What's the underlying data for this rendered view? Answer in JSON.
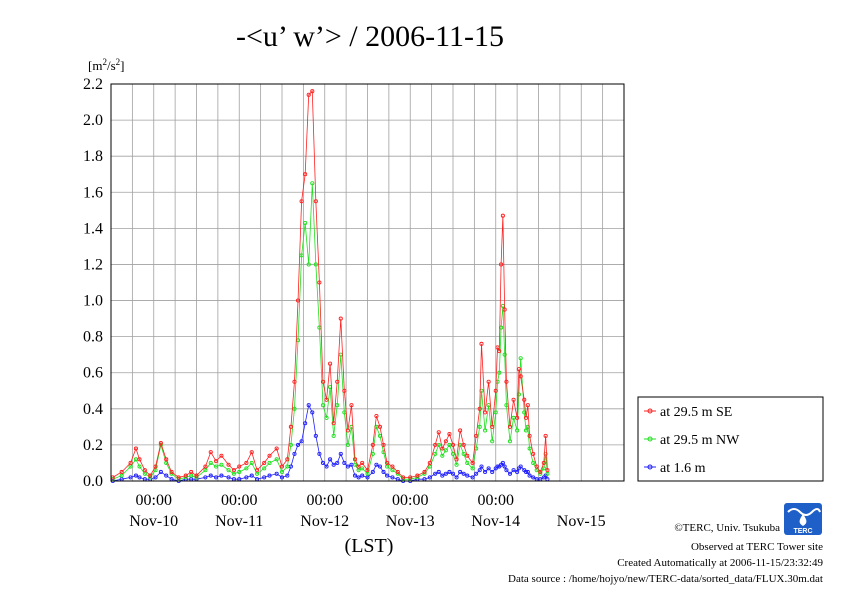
{
  "colors": {
    "se": "#ff2020",
    "nw": "#20e020",
    "low": "#2020ff",
    "grid": "#a0a0a0",
    "logo": "#1f5fc8"
  },
  "credits": {
    "copyright": "©TERC, Univ. Tsukuba",
    "observed": "Observed at TERC Tower site",
    "created": "Created Automatically at 2006-11-15/23:32:49",
    "source": "Data source : /home/hojyo/new/TERC-data/sorted_data/FLUX.30m.dat",
    "logo_text": "TERC"
  },
  "chart_data": {
    "type": "line",
    "title": "-<u’ w’> / 2006-11-15",
    "ylabel": "[m2/s2]",
    "xlabel": "(LST)",
    "ylim": [
      0,
      2.2
    ],
    "ytick_labels": [
      "0.0",
      "0.2",
      "0.4",
      "0.6",
      "0.8",
      "1.0",
      "1.2",
      "1.4",
      "1.6",
      "1.8",
      "2.0",
      "2.2"
    ],
    "xlim_hours": [
      -12,
      132
    ],
    "xtick_time_labels": [
      "00:00",
      "00:00",
      "00:00",
      "00:00",
      "00:00"
    ],
    "xtick_date_labels": [
      "Nov-10",
      "Nov-11",
      "Nov-12",
      "Nov-13",
      "Nov-14",
      "Nov-15"
    ],
    "grid": true,
    "legend_position": "right",
    "series": [
      {
        "name": "at 29.5 m SE",
        "points": [
          [
            -11.5,
            0.02
          ],
          [
            -9,
            0.05
          ],
          [
            -6.5,
            0.1
          ],
          [
            -5,
            0.18
          ],
          [
            -4,
            0.12
          ],
          [
            -2.5,
            0.06
          ],
          [
            -1,
            0.03
          ],
          [
            0.5,
            0.08
          ],
          [
            2,
            0.21
          ],
          [
            3.5,
            0.12
          ],
          [
            5,
            0.05
          ],
          [
            7,
            0.02
          ],
          [
            9,
            0.03
          ],
          [
            10.5,
            0.05
          ],
          [
            12,
            0.03
          ],
          [
            14.5,
            0.08
          ],
          [
            16,
            0.16
          ],
          [
            17.5,
            0.11
          ],
          [
            19,
            0.14
          ],
          [
            21,
            0.09
          ],
          [
            22.5,
            0.06
          ],
          [
            24,
            0.08
          ],
          [
            26,
            0.1
          ],
          [
            27.5,
            0.16
          ],
          [
            29,
            0.06
          ],
          [
            31,
            0.1
          ],
          [
            32.5,
            0.14
          ],
          [
            34.5,
            0.18
          ],
          [
            36,
            0.08
          ],
          [
            37.5,
            0.12
          ],
          [
            38.5,
            0.3
          ],
          [
            39.5,
            0.55
          ],
          [
            40.5,
            1.0
          ],
          [
            41.5,
            1.55
          ],
          [
            42.5,
            1.7
          ],
          [
            43.5,
            2.14
          ],
          [
            44.5,
            2.16
          ],
          [
            45.5,
            1.55
          ],
          [
            46.5,
            1.1
          ],
          [
            47.5,
            0.55
          ],
          [
            48.5,
            0.45
          ],
          [
            49.5,
            0.65
          ],
          [
            50.5,
            0.32
          ],
          [
            51.5,
            0.55
          ],
          [
            52.5,
            0.9
          ],
          [
            53.5,
            0.5
          ],
          [
            54.5,
            0.28
          ],
          [
            55.5,
            0.42
          ],
          [
            56.5,
            0.12
          ],
          [
            57.5,
            0.08
          ],
          [
            58.5,
            0.1
          ],
          [
            60,
            0.06
          ],
          [
            61.5,
            0.2
          ],
          [
            62.5,
            0.36
          ],
          [
            63.5,
            0.3
          ],
          [
            64.5,
            0.2
          ],
          [
            65.5,
            0.1
          ],
          [
            67,
            0.08
          ],
          [
            68.5,
            0.05
          ],
          [
            70,
            0.02
          ],
          [
            72,
            0.02
          ],
          [
            74,
            0.03
          ],
          [
            76,
            0.05
          ],
          [
            77.5,
            0.1
          ],
          [
            79,
            0.2
          ],
          [
            80,
            0.27
          ],
          [
            81,
            0.18
          ],
          [
            82,
            0.22
          ],
          [
            83,
            0.26
          ],
          [
            84,
            0.2
          ],
          [
            85,
            0.12
          ],
          [
            86,
            0.28
          ],
          [
            87,
            0.2
          ],
          [
            88,
            0.14
          ],
          [
            89.5,
            0.1
          ],
          [
            90.5,
            0.25
          ],
          [
            91.5,
            0.4
          ],
          [
            92,
            0.76
          ],
          [
            93,
            0.38
          ],
          [
            94,
            0.55
          ],
          [
            95,
            0.3
          ],
          [
            96,
            0.5
          ],
          [
            96.5,
            0.74
          ],
          [
            97,
            0.72
          ],
          [
            97.5,
            1.2
          ],
          [
            98,
            1.47
          ],
          [
            98.5,
            0.95
          ],
          [
            99,
            0.55
          ],
          [
            100,
            0.3
          ],
          [
            101,
            0.45
          ],
          [
            102,
            0.35
          ],
          [
            102.5,
            0.62
          ],
          [
            103,
            0.58
          ],
          [
            104,
            0.45
          ],
          [
            104.5,
            0.35
          ],
          [
            105,
            0.42
          ],
          [
            105.5,
            0.25
          ],
          [
            106.5,
            0.15
          ],
          [
            107.5,
            0.08
          ],
          [
            108.5,
            0.05
          ],
          [
            109.5,
            0.1
          ],
          [
            110,
            0.25
          ],
          [
            110.5,
            0.06
          ]
        ]
      },
      {
        "name": "at 29.5 m NW",
        "points": [
          [
            -11.5,
            0.01
          ],
          [
            -9,
            0.03
          ],
          [
            -6.5,
            0.08
          ],
          [
            -5,
            0.12
          ],
          [
            -4,
            0.08
          ],
          [
            -2.5,
            0.04
          ],
          [
            -1,
            0.02
          ],
          [
            0.5,
            0.06
          ],
          [
            2,
            0.2
          ],
          [
            3.5,
            0.1
          ],
          [
            5,
            0.04
          ],
          [
            7,
            0.01
          ],
          [
            9,
            0.02
          ],
          [
            10.5,
            0.03
          ],
          [
            12,
            0.02
          ],
          [
            14.5,
            0.06
          ],
          [
            16,
            0.1
          ],
          [
            17.5,
            0.08
          ],
          [
            19,
            0.09
          ],
          [
            21,
            0.06
          ],
          [
            22.5,
            0.04
          ],
          [
            24,
            0.05
          ],
          [
            26,
            0.07
          ],
          [
            27.5,
            0.1
          ],
          [
            29,
            0.04
          ],
          [
            31,
            0.07
          ],
          [
            32.5,
            0.1
          ],
          [
            34.5,
            0.12
          ],
          [
            36,
            0.05
          ],
          [
            37.5,
            0.08
          ],
          [
            38.5,
            0.2
          ],
          [
            39.5,
            0.4
          ],
          [
            40.5,
            0.78
          ],
          [
            41.5,
            1.25
          ],
          [
            42.5,
            1.43
          ],
          [
            43.5,
            1.2
          ],
          [
            44.5,
            1.65
          ],
          [
            45.5,
            1.2
          ],
          [
            46.5,
            0.85
          ],
          [
            47.5,
            0.42
          ],
          [
            48.5,
            0.35
          ],
          [
            49.5,
            0.52
          ],
          [
            50.5,
            0.25
          ],
          [
            51.5,
            0.42
          ],
          [
            52.5,
            0.7
          ],
          [
            53.5,
            0.38
          ],
          [
            54.5,
            0.2
          ],
          [
            55.5,
            0.3
          ],
          [
            56.5,
            0.09
          ],
          [
            57.5,
            0.06
          ],
          [
            58.5,
            0.07
          ],
          [
            60,
            0.04
          ],
          [
            61.5,
            0.15
          ],
          [
            62.5,
            0.3
          ],
          [
            63.5,
            0.25
          ],
          [
            64.5,
            0.16
          ],
          [
            65.5,
            0.08
          ],
          [
            67,
            0.06
          ],
          [
            68.5,
            0.04
          ],
          [
            70,
            0.01
          ],
          [
            72,
            0.01
          ],
          [
            74,
            0.02
          ],
          [
            76,
            0.04
          ],
          [
            77.5,
            0.08
          ],
          [
            79,
            0.15
          ],
          [
            80,
            0.2
          ],
          [
            81,
            0.14
          ],
          [
            82,
            0.17
          ],
          [
            83,
            0.2
          ],
          [
            84,
            0.15
          ],
          [
            85,
            0.09
          ],
          [
            86,
            0.2
          ],
          [
            87,
            0.15
          ],
          [
            88,
            0.1
          ],
          [
            89.5,
            0.07
          ],
          [
            90.5,
            0.18
          ],
          [
            91.5,
            0.3
          ],
          [
            92,
            0.5
          ],
          [
            93,
            0.28
          ],
          [
            94,
            0.42
          ],
          [
            95,
            0.22
          ],
          [
            96,
            0.38
          ],
          [
            96.5,
            0.55
          ],
          [
            97,
            0.6
          ],
          [
            97.5,
            0.85
          ],
          [
            98,
            0.97
          ],
          [
            98.5,
            0.7
          ],
          [
            99,
            0.42
          ],
          [
            100,
            0.22
          ],
          [
            101,
            0.35
          ],
          [
            102,
            0.28
          ],
          [
            102.5,
            0.48
          ],
          [
            103,
            0.68
          ],
          [
            104,
            0.38
          ],
          [
            104.5,
            0.28
          ],
          [
            105,
            0.3
          ],
          [
            105.5,
            0.18
          ],
          [
            106.5,
            0.1
          ],
          [
            107.5,
            0.06
          ],
          [
            108.5,
            0.04
          ],
          [
            109.5,
            0.07
          ],
          [
            110,
            0.15
          ],
          [
            110.5,
            0.04
          ]
        ]
      },
      {
        "name": "at 1.6 m",
        "points": [
          [
            -11.5,
            0.0
          ],
          [
            -9,
            0.01
          ],
          [
            -6.5,
            0.02
          ],
          [
            -5,
            0.03
          ],
          [
            -4,
            0.02
          ],
          [
            -2.5,
            0.01
          ],
          [
            -1,
            0.01
          ],
          [
            0.5,
            0.02
          ],
          [
            2,
            0.05
          ],
          [
            3.5,
            0.03
          ],
          [
            5,
            0.01
          ],
          [
            7,
            0.0
          ],
          [
            9,
            0.01
          ],
          [
            10.5,
            0.01
          ],
          [
            12,
            0.01
          ],
          [
            14.5,
            0.02
          ],
          [
            16,
            0.03
          ],
          [
            17.5,
            0.02
          ],
          [
            19,
            0.03
          ],
          [
            21,
            0.02
          ],
          [
            22.5,
            0.01
          ],
          [
            24,
            0.01
          ],
          [
            26,
            0.02
          ],
          [
            27.5,
            0.03
          ],
          [
            29,
            0.01
          ],
          [
            31,
            0.02
          ],
          [
            32.5,
            0.03
          ],
          [
            34.5,
            0.04
          ],
          [
            36,
            0.02
          ],
          [
            37.5,
            0.03
          ],
          [
            38.5,
            0.08
          ],
          [
            39.5,
            0.15
          ],
          [
            40.5,
            0.2
          ],
          [
            41.5,
            0.22
          ],
          [
            42.5,
            0.32
          ],
          [
            43.5,
            0.42
          ],
          [
            44.5,
            0.38
          ],
          [
            45.5,
            0.25
          ],
          [
            46.5,
            0.15
          ],
          [
            47.5,
            0.1
          ],
          [
            48.5,
            0.08
          ],
          [
            49.5,
            0.12
          ],
          [
            50.5,
            0.09
          ],
          [
            51.5,
            0.1
          ],
          [
            52.5,
            0.15
          ],
          [
            53.5,
            0.1
          ],
          [
            54.5,
            0.08
          ],
          [
            55.5,
            0.09
          ],
          [
            56.5,
            0.03
          ],
          [
            57.5,
            0.02
          ],
          [
            58.5,
            0.03
          ],
          [
            60,
            0.02
          ],
          [
            61.5,
            0.05
          ],
          [
            62.5,
            0.09
          ],
          [
            63.5,
            0.08
          ],
          [
            64.5,
            0.05
          ],
          [
            65.5,
            0.03
          ],
          [
            67,
            0.02
          ],
          [
            68.5,
            0.01
          ],
          [
            70,
            0.0
          ],
          [
            72,
            0.0
          ],
          [
            74,
            0.01
          ],
          [
            76,
            0.01
          ],
          [
            77.5,
            0.02
          ],
          [
            79,
            0.04
          ],
          [
            80,
            0.05
          ],
          [
            81,
            0.03
          ],
          [
            82,
            0.04
          ],
          [
            83,
            0.05
          ],
          [
            84,
            0.04
          ],
          [
            85,
            0.02
          ],
          [
            86,
            0.05
          ],
          [
            87,
            0.04
          ],
          [
            88,
            0.03
          ],
          [
            89.5,
            0.02
          ],
          [
            90.5,
            0.04
          ],
          [
            91.5,
            0.06
          ],
          [
            92,
            0.08
          ],
          [
            93,
            0.05
          ],
          [
            94,
            0.07
          ],
          [
            95,
            0.05
          ],
          [
            96,
            0.07
          ],
          [
            96.5,
            0.08
          ],
          [
            97,
            0.08
          ],
          [
            97.5,
            0.09
          ],
          [
            98,
            0.1
          ],
          [
            98.5,
            0.08
          ],
          [
            99,
            0.06
          ],
          [
            100,
            0.04
          ],
          [
            101,
            0.06
          ],
          [
            102,
            0.05
          ],
          [
            102.5,
            0.07
          ],
          [
            103,
            0.08
          ],
          [
            104,
            0.06
          ],
          [
            104.5,
            0.05
          ],
          [
            105,
            0.05
          ],
          [
            105.5,
            0.03
          ],
          [
            106.5,
            0.02
          ],
          [
            107.5,
            0.01
          ],
          [
            108.5,
            0.01
          ],
          [
            109.5,
            0.02
          ],
          [
            110,
            0.03
          ],
          [
            110.5,
            0.01
          ]
        ]
      }
    ]
  }
}
